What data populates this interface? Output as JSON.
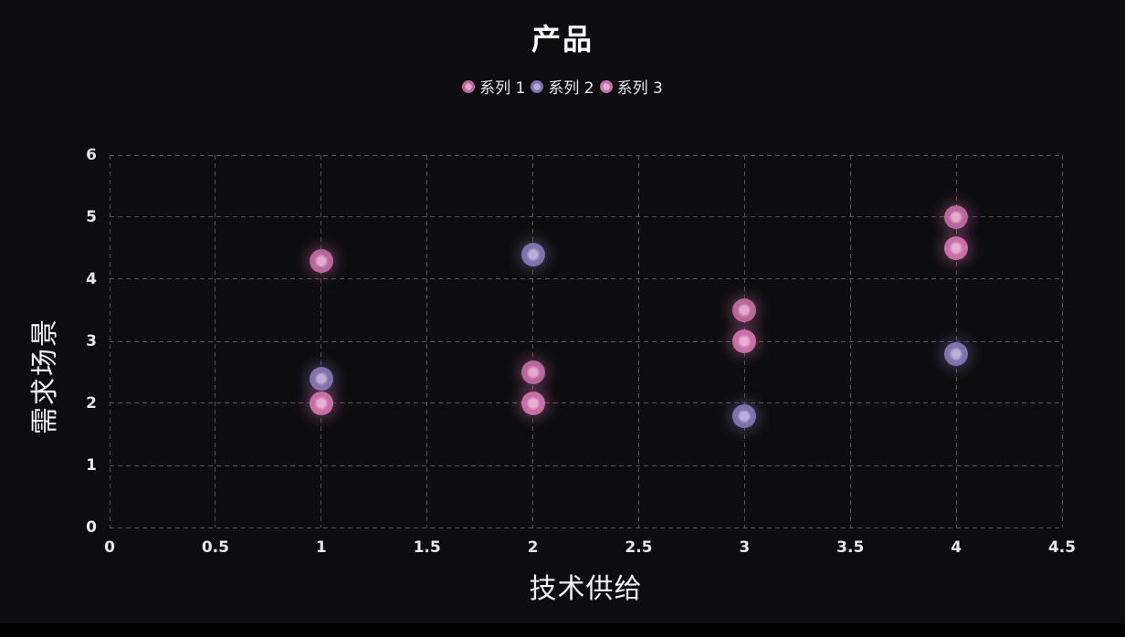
{
  "title": "产品",
  "colors": {
    "background": "#0d0d0f",
    "grid_line": "#565656",
    "text": "#f2f2f2",
    "tick_text": "#e9e9e9"
  },
  "chart_data": {
    "type": "scatter",
    "title": "产品",
    "xlabel": "技术供给",
    "ylabel": "需求场景",
    "xlim": [
      0,
      4.5
    ],
    "ylim": [
      0,
      6
    ],
    "xtick_labels": [
      "0",
      "0.5",
      "1",
      "1.5",
      "2",
      "2.5",
      "3",
      "3.5",
      "4",
      "4.5"
    ],
    "xtick_values": [
      0,
      0.5,
      1,
      1.5,
      2,
      2.5,
      3,
      3.5,
      4,
      4.5
    ],
    "ytick_labels": [
      "0",
      "1",
      "2",
      "3",
      "4",
      "5",
      "6"
    ],
    "ytick_values": [
      0,
      1,
      2,
      3,
      4,
      5,
      6
    ],
    "grid": true,
    "grid_style": "dashed",
    "legend_position": "top",
    "series": [
      {
        "name": "系列 1",
        "color": "#b9679c",
        "core_color": "#e2abcc",
        "points": [
          [
            1,
            4.3
          ],
          [
            2,
            2.5
          ],
          [
            3,
            3.5
          ],
          [
            4,
            5.0
          ]
        ]
      },
      {
        "name": "系列 2",
        "color": "#8072ad",
        "core_color": "#bcafd7",
        "points": [
          [
            1,
            2.4
          ],
          [
            2,
            4.4
          ],
          [
            3,
            1.8
          ],
          [
            4,
            2.8
          ]
        ]
      },
      {
        "name": "系列 3",
        "color": "#c96fa7",
        "core_color": "#e7b0d2",
        "points": [
          [
            1,
            2.0
          ],
          [
            2,
            2.0
          ],
          [
            3,
            3.0
          ],
          [
            4,
            4.5
          ]
        ]
      }
    ]
  }
}
